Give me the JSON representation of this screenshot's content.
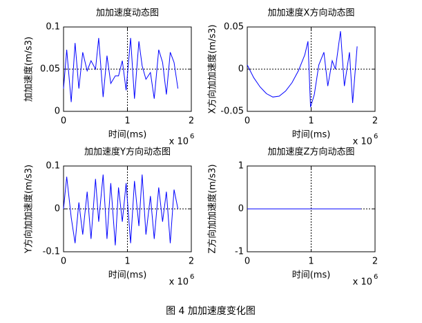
{
  "chart_data": [
    {
      "type": "line",
      "title": "加加速度动态图",
      "xlabel": "时间(ms)",
      "ylabel": "加加速度(m/s3)",
      "x_scale_label": "x 10",
      "x_scale_power": "6",
      "x": [
        0,
        0.05,
        0.12,
        0.18,
        0.24,
        0.3,
        0.37,
        0.43,
        0.5,
        0.55,
        0.62,
        0.68,
        0.74,
        0.81,
        0.86,
        0.92,
        0.98,
        1.05,
        1.11,
        1.18,
        1.23,
        1.29,
        1.36,
        1.42,
        1.49,
        1.55,
        1.61,
        1.67,
        1.73,
        1.79
      ],
      "values": [
        0.027,
        0.073,
        0.011,
        0.081,
        0.027,
        0.07,
        0.048,
        0.06,
        0.05,
        0.087,
        0.017,
        0.066,
        0.033,
        0.042,
        0.042,
        0.06,
        0.025,
        0.087,
        0.015,
        0.083,
        0.054,
        0.038,
        0.046,
        0.015,
        0.073,
        0.058,
        0.02,
        0.07,
        0.058,
        0.027
      ],
      "color": "#0000ff",
      "xlim": [
        0,
        2
      ],
      "xticks": [
        0,
        1,
        2
      ],
      "ylim": [
        0,
        0.1
      ],
      "yticks": [
        0,
        0.05,
        0.1
      ],
      "vline": 1,
      "hline": 0.05
    },
    {
      "type": "line",
      "title": "加加速度X方向动态图",
      "xlabel": "时间(ms)",
      "ylabel": "X方向加加速度(m/s3)",
      "x_scale_label": "x 10",
      "x_scale_power": "6",
      "x": [
        0,
        0.1,
        0.2,
        0.3,
        0.4,
        0.5,
        0.6,
        0.7,
        0.8,
        0.9,
        0.95,
        0.99,
        1.05,
        1.12,
        1.2,
        1.26,
        1.33,
        1.38,
        1.46,
        1.52,
        1.6,
        1.65,
        1.72
      ],
      "values": [
        0.005,
        -0.01,
        -0.021,
        -0.029,
        -0.033,
        -0.032,
        -0.026,
        -0.016,
        -0.002,
        0.017,
        0.033,
        -0.045,
        -0.03,
        0.005,
        0.02,
        -0.02,
        0.01,
        0.0,
        0.045,
        -0.02,
        0.02,
        -0.04,
        0.027
      ],
      "color": "#0000ff",
      "xlim": [
        0,
        2
      ],
      "xticks": [
        0,
        1,
        2
      ],
      "ylim": [
        -0.05,
        0.05
      ],
      "yticks": [
        -0.05,
        0,
        0.05
      ],
      "vline": 1,
      "hline": 0
    },
    {
      "type": "line",
      "title": "加加速度Y方向动态图",
      "xlabel": "时间(ms)",
      "ylabel": "Y方向加加速度(m/s3)",
      "x_scale_label": "x 10",
      "x_scale_power": "6",
      "x": [
        0,
        0.05,
        0.12,
        0.18,
        0.24,
        0.3,
        0.37,
        0.43,
        0.5,
        0.55,
        0.62,
        0.68,
        0.74,
        0.81,
        0.86,
        0.92,
        0.98,
        1.05,
        1.11,
        1.18,
        1.23,
        1.29,
        1.36,
        1.42,
        1.49,
        1.55,
        1.61,
        1.67,
        1.73,
        1.79
      ],
      "values": [
        0.0,
        0.075,
        -0.02,
        -0.08,
        0.015,
        -0.06,
        0.04,
        -0.07,
        0.07,
        -0.03,
        0.08,
        -0.07,
        0.06,
        -0.085,
        0.05,
        -0.03,
        0.06,
        -0.08,
        0.065,
        -0.04,
        0.08,
        -0.06,
        0.03,
        -0.07,
        0.05,
        -0.03,
        0.04,
        -0.08,
        0.045,
        0.0
      ],
      "color": "#0000ff",
      "xlim": [
        0,
        2
      ],
      "xticks": [
        0,
        1,
        2
      ],
      "ylim": [
        -0.1,
        0.1
      ],
      "yticks": [
        -0.1,
        0,
        0.1
      ],
      "vline": 1,
      "hline": 0
    },
    {
      "type": "line",
      "title": "加加速度Z方向动态图",
      "xlabel": "时间(ms)",
      "ylabel": "Z方向加加速度(m/s3)",
      "x_scale_label": "x 10",
      "x_scale_power": "6",
      "x": [
        0,
        1.78
      ],
      "values": [
        0,
        0
      ],
      "color": "#0000ff",
      "xlim": [
        0,
        2
      ],
      "xticks": [
        0,
        1,
        2
      ],
      "ylim": [
        -1,
        1
      ],
      "yticks": [
        -1,
        0,
        1
      ],
      "vline": 1,
      "hline": 0
    }
  ],
  "caption": "图 4  加加速度变化图"
}
